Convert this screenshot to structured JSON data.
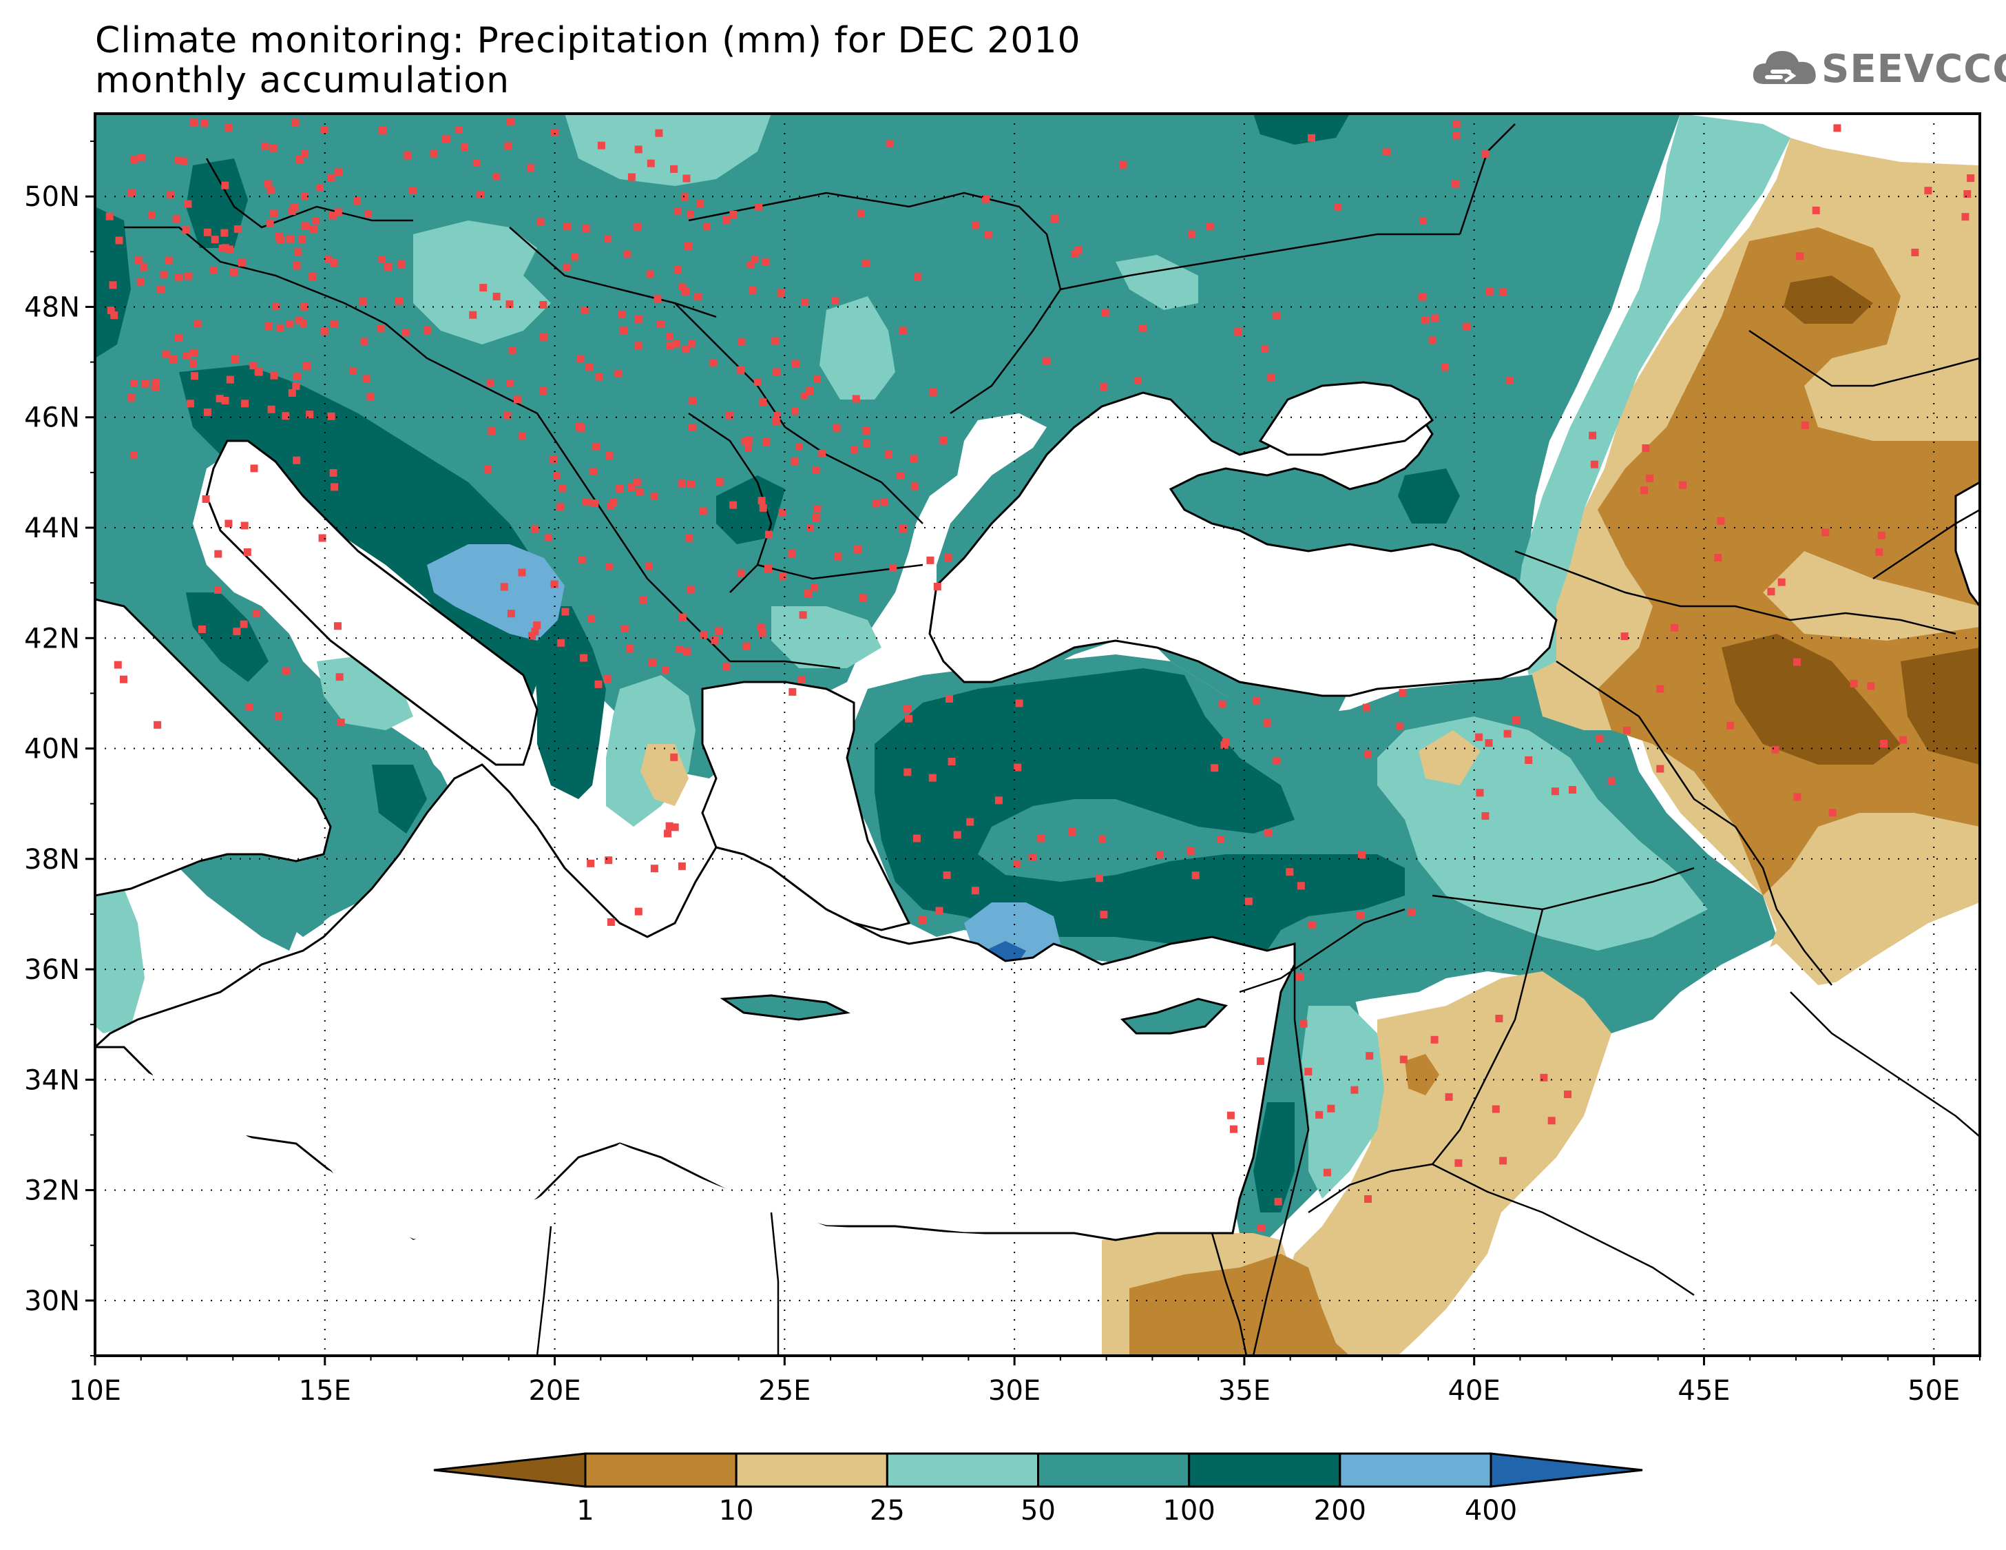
{
  "title": {
    "line1": "Climate monitoring: Precipitation (mm) for DEC 2010",
    "line2": "monthly accumulation"
  },
  "logo": {
    "text": "SEEVCCC",
    "icon": "cloud-icon"
  },
  "map": {
    "lon_ticks": [
      "10E",
      "15E",
      "20E",
      "25E",
      "30E",
      "35E",
      "40E",
      "45E",
      "50E"
    ],
    "lat_ticks": [
      "30N",
      "32N",
      "34N",
      "36N",
      "38N",
      "40N",
      "42N",
      "44N",
      "46N",
      "48N",
      "50N"
    ],
    "lon_range": [
      10,
      51
    ],
    "lat_range": [
      29,
      51.5
    ],
    "grid": "dotted"
  },
  "colorbar": {
    "bounds": [
      "1",
      "10",
      "25",
      "50",
      "100",
      "200",
      "400"
    ],
    "colors": [
      "#8b5a14",
      "#be8532",
      "#e0c587",
      "#80cdc1",
      "#35978f",
      "#01665e",
      "#6baed6",
      "#2166ac"
    ],
    "extend": "both"
  },
  "colors": {
    "sea": "#ffffff",
    "station_marker": "#f04848",
    "boundary": "#000000"
  }
}
